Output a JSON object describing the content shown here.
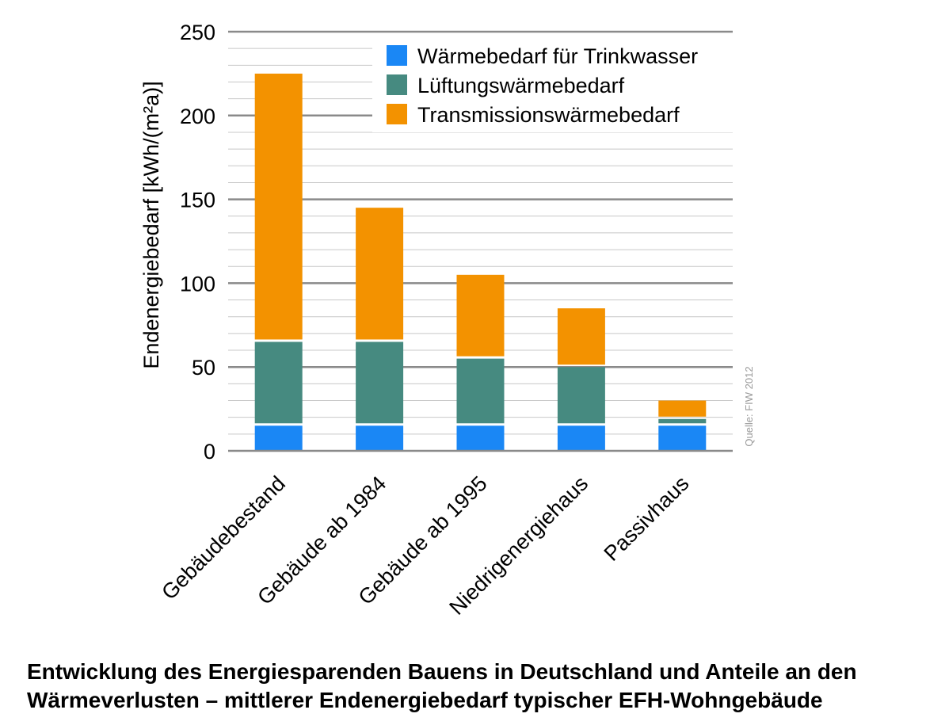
{
  "chart_data": {
    "type": "bar",
    "stacked": true,
    "categories": [
      "Gebäudebestand",
      "Gebäude ab 1984",
      "Gebäude ab 1995",
      "Niedrigenergiehaus",
      "Passivhaus"
    ],
    "series": [
      {
        "name": "Wärmebedarf für Trinkwasser",
        "color": "#1a87f5",
        "values": [
          15,
          15,
          15,
          15,
          15
        ]
      },
      {
        "name": "Lüftungswärmebedarf",
        "color": "#468a80",
        "values": [
          50,
          50,
          40,
          35,
          4
        ]
      },
      {
        "name": "Transmissionswärmebedarf",
        "color": "#f39200",
        "values": [
          160,
          80,
          50,
          35,
          11
        ]
      }
    ],
    "ylabel": "Endenergiebedarf  [kWh/(m²a)]",
    "ylim": [
      0,
      250
    ],
    "yticks": [
      0,
      50,
      100,
      150,
      200,
      250
    ],
    "grid": true,
    "legend_position": "top-right",
    "source_note": "Quelle: FIW 2012"
  },
  "caption": {
    "line1": "Entwicklung des Energiesparenden Bauens in Deutschland und Anteile an den",
    "line2": "Wärmeverlusten – mittlerer Endenergiebedarf typischer EFH-Wohngebäude"
  }
}
